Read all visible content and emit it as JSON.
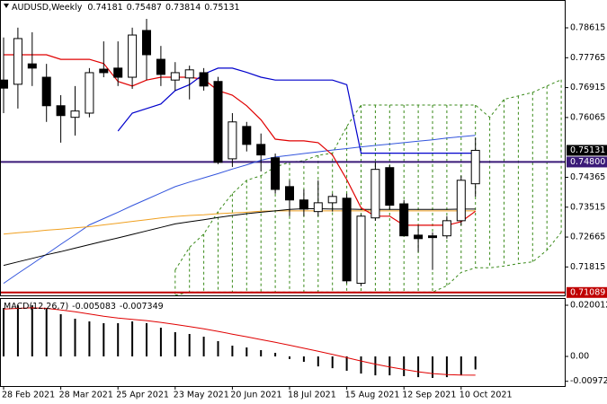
{
  "chart_data": [
    {
      "type": "candlestick",
      "title": "AUDUSD,Weekly",
      "categories": [
        "28 Feb 2021",
        null,
        null,
        null,
        "28 Mar 2021",
        null,
        null,
        null,
        "25 Apr 2021",
        null,
        null,
        null,
        "23 May 2021",
        null,
        null,
        null,
        "20 Jun 2021",
        null,
        null,
        null,
        "18 Jul 2021",
        null,
        null,
        null,
        "15 Aug 2021",
        null,
        null,
        null,
        "12 Sep 2021",
        null,
        null,
        null,
        "10 Oct 2021",
        null,
        null,
        null,
        null,
        null,
        null,
        null
      ],
      "open": [
        0.7713,
        0.7701,
        0.7759,
        0.7721,
        0.764,
        0.7607,
        0.7619,
        0.7744,
        0.7747,
        0.7721,
        0.7854,
        0.7772,
        0.7713,
        0.7719,
        0.7734,
        0.7709,
        0.7489,
        0.7581,
        0.753,
        0.7492,
        0.741,
        0.7372,
        0.7339,
        0.7364,
        0.7377,
        0.7135,
        0.7321,
        0.7464,
        0.7361,
        0.7272,
        0.727,
        0.727,
        0.7313,
        0.74181,
        null,
        null,
        null,
        null,
        null,
        null
      ],
      "high": [
        0.7834,
        0.7862,
        0.7849,
        0.7759,
        0.767,
        0.7696,
        0.7747,
        0.7823,
        0.7823,
        0.7862,
        0.7887,
        0.781,
        0.7764,
        0.7754,
        0.7747,
        0.7722,
        0.7619,
        0.7594,
        0.7561,
        0.7504,
        0.7428,
        0.7402,
        0.7428,
        0.739,
        0.739,
        0.7331,
        0.7479,
        0.7471,
        0.7372,
        0.73,
        0.728,
        0.7326,
        0.7441,
        0.75487,
        null,
        null,
        null,
        null,
        null,
        null
      ],
      "low": [
        0.7619,
        0.7632,
        0.7696,
        0.7594,
        0.7535,
        0.7555,
        0.7607,
        0.7721,
        0.7696,
        0.7688,
        0.7713,
        0.7696,
        0.7683,
        0.7658,
        0.7683,
        0.7474,
        0.7466,
        0.751,
        0.7453,
        0.739,
        0.7326,
        0.7326,
        0.7326,
        0.7339,
        0.7135,
        0.7127,
        0.7313,
        0.7346,
        0.727,
        0.7224,
        0.7173,
        0.7262,
        0.73,
        0.73814,
        null,
        null,
        null,
        null,
        null,
        null
      ],
      "close": [
        0.769,
        0.7831,
        0.7747,
        0.764,
        0.7612,
        0.7625,
        0.7734,
        0.7734,
        0.7721,
        0.7841,
        0.7785,
        0.7729,
        0.7734,
        0.7742,
        0.7696,
        0.7479,
        0.7594,
        0.753,
        0.75,
        0.7402,
        0.7372,
        0.7346,
        0.7364,
        0.7382,
        0.7142,
        0.7326,
        0.7459,
        0.7357,
        0.727,
        0.7262,
        0.7265,
        0.7313,
        0.7428,
        0.75131,
        null,
        null,
        null,
        null,
        null,
        null
      ],
      "up_color": "#ffffff",
      "down_color": "#000000",
      "series": [
        {
          "color": "#3355dd",
          "values": [
            0.7135,
            0.7163,
            0.719,
            0.7218,
            0.7246,
            0.7273,
            0.7301,
            0.7319,
            0.7337,
            0.7356,
            0.7374,
            0.7392,
            0.741,
            0.7423,
            0.7435,
            0.7447,
            0.746,
            0.7472,
            0.7485,
            0.7494,
            0.7499,
            0.7504,
            0.7509,
            0.7514,
            0.7518,
            0.7523,
            0.7527,
            0.7531,
            0.7535,
            0.7539,
            0.7543,
            0.7548,
            0.7552,
            0.7556,
            null,
            null,
            null,
            null,
            null,
            null
          ]
        },
        {
          "color": "#f0a020",
          "values": [
            0.7275,
            0.7279,
            0.7282,
            0.7286,
            0.7289,
            0.7293,
            0.7296,
            0.7301,
            0.7306,
            0.7311,
            0.7316,
            0.7321,
            0.7325,
            0.7328,
            0.733,
            0.7333,
            0.7335,
            0.7337,
            0.734,
            0.7341,
            0.7341,
            0.7341,
            0.7341,
            0.7341,
            0.7341,
            0.7341,
            0.7341,
            0.7341,
            0.7341,
            0.7341,
            0.7341,
            0.7341,
            0.7341,
            0.7341,
            null,
            null,
            null,
            null,
            null,
            null
          ]
        },
        {
          "color": "#000000",
          "values": [
            0.7186,
            0.7196,
            0.7206,
            0.7216,
            0.7225,
            0.7235,
            0.7245,
            0.7255,
            0.7264,
            0.7274,
            0.7284,
            0.7294,
            0.7304,
            0.731,
            0.7316,
            0.7322,
            0.7328,
            0.7333,
            0.7337,
            0.7341,
            0.7345,
            0.7347,
            0.7347,
            0.7346,
            0.7346,
            0.7345,
            0.7345,
            0.7345,
            0.7345,
            0.7345,
            0.7345,
            0.7345,
            0.7346,
            0.7346,
            null,
            null,
            null,
            null,
            null,
            null
          ]
        },
        {
          "color": "#e00000",
          "values": [
            0.7785,
            0.7785,
            0.7785,
            0.7785,
            0.7772,
            0.7772,
            0.7772,
            0.776,
            0.7709,
            0.7696,
            0.7713,
            0.7721,
            0.7721,
            0.7721,
            0.7715,
            0.7683,
            0.767,
            0.764,
            0.76,
            0.7545,
            0.754,
            0.754,
            0.7535,
            0.75,
            0.743,
            0.735,
            0.7326,
            0.7326,
            0.73,
            0.73,
            0.73,
            0.73,
            0.731,
            0.734,
            null,
            null,
            null,
            null,
            null,
            null
          ]
        },
        {
          "color": "#0000cc",
          "values": [
            null,
            null,
            null,
            null,
            null,
            null,
            null,
            null,
            0.7568,
            0.7619,
            0.7632,
            0.7645,
            0.7683,
            0.77,
            0.773,
            0.7747,
            0.7747,
            0.7735,
            0.7721,
            0.7713,
            0.7713,
            0.7713,
            0.7713,
            0.7713,
            0.77,
            0.7505,
            0.7505,
            0.7505,
            0.7505,
            0.7505,
            0.7505,
            0.7505,
            0.7505,
            0.7505,
            null,
            null,
            null,
            null,
            null,
            null
          ]
        }
      ],
      "cloud": {
        "color": "#3a8a1a",
        "span_a": [
          null,
          null,
          null,
          null,
          null,
          null,
          null,
          null,
          null,
          null,
          null,
          null,
          0.7173,
          0.7237,
          0.7275,
          0.7339,
          0.739,
          0.7428,
          0.7441,
          0.7466,
          0.7479,
          0.7484,
          0.7499,
          0.7505,
          0.7581,
          0.7642,
          0.7642,
          0.7642,
          0.7642,
          0.7642,
          0.7642,
          0.7642,
          0.7642,
          0.7642,
          0.7607,
          0.7658,
          0.7668,
          0.7678,
          0.7696,
          0.7714
        ],
        "span_b": [
          null,
          null,
          null,
          null,
          null,
          null,
          null,
          null,
          null,
          null,
          null,
          null,
          0.7101,
          0.711,
          0.711,
          0.711,
          0.711,
          0.711,
          0.711,
          0.711,
          0.711,
          0.711,
          0.711,
          0.711,
          0.711,
          0.711,
          0.711,
          0.711,
          0.711,
          0.711,
          0.711,
          0.7128,
          0.7166,
          0.7179,
          0.7179,
          0.7184,
          0.7191,
          0.7196,
          0.7229,
          0.728
        ]
      },
      "hlines": [
        {
          "value": 0.748,
          "label": "0.74800",
          "color": "#3a1a78"
        },
        {
          "value": 0.71089,
          "color": "#c00000"
        }
      ],
      "ylim": [
        0.71007,
        0.79381
      ],
      "yticks": [
        0.78615,
        0.77765,
        0.76915,
        0.76065,
        0.74365,
        0.73515,
        0.72665,
        0.71815
      ]
    },
    {
      "type": "macd",
      "title": "MACD(12,26,7)",
      "color": "#000000",
      "values": [
        0.01895,
        0.02,
        0.02,
        0.01895,
        0.0165,
        0.01474,
        0.01369,
        0.01299,
        0.01299,
        0.01369,
        0.01299,
        0.01123,
        0.00948,
        0.00878,
        0.00772,
        0.00597,
        0.00421,
        0.00351,
        0.00246,
        0.0014,
        -0.001,
        -0.0021,
        -0.0039,
        -0.0046,
        -0.0056,
        -0.0067,
        -0.0074,
        -0.0074,
        -0.0077,
        -0.0081,
        -0.0084,
        -0.0081,
        -0.0074,
        -0.005083,
        null,
        null,
        null,
        null,
        null,
        null
      ],
      "signal": {
        "color": "#e00000",
        "values": [
          0.0185,
          0.0188,
          0.019,
          0.0188,
          0.0182,
          0.0175,
          0.0166,
          0.0157,
          0.015,
          0.0145,
          0.014,
          0.0133,
          0.0125,
          0.0117,
          0.0108,
          0.0098,
          0.0087,
          0.0077,
          0.0066,
          0.0055,
          0.0044,
          0.0032,
          0.002,
          0.0008,
          -0.0005,
          -0.0018,
          -0.003,
          -0.0041,
          -0.0051,
          -0.006,
          -0.0067,
          -0.0071,
          -0.0073,
          -0.007349,
          null,
          null,
          null,
          null,
          null,
          null
        ]
      },
      "ylim": [
        -0.01158,
        0.02247
      ],
      "yticks": [
        0.020012,
        {
          "value": 0,
          "label": "0.00"
        },
        -0.00972
      ]
    }
  ]
}
